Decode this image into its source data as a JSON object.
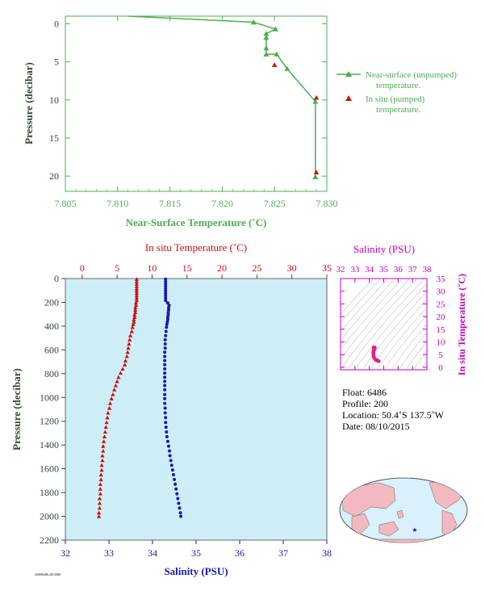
{
  "colors": {
    "green": "#4caf50",
    "red": "#cc1010",
    "blue": "#1a1aa8",
    "magenta": "#c000c0",
    "axis_text": "#2e4a2e",
    "profile_bg": "#cdeef7",
    "map_ocean": "#d8f1fb",
    "map_land": "#f2b9c0"
  },
  "chart_data": [
    {
      "type": "line",
      "xlabel": "Near-Surface Temperature (˚C)",
      "ylabel": "Pressure (decibar)",
      "xlim": [
        7.805,
        7.83
      ],
      "ylim": [
        22,
        -1
      ],
      "x_ticks": [
        "7.805",
        "7.810",
        "7.815",
        "7.820",
        "7.825",
        "7.830"
      ],
      "y_ticks": [
        "0",
        "5",
        "10",
        "15",
        "20"
      ],
      "series": [
        {
          "name": "Near-surface (unpumped) temperature.",
          "marker": "triangle",
          "points": [
            [
              7.811,
              -1
            ],
            [
              7.823,
              -0.2
            ],
            [
              7.8251,
              0.7
            ],
            [
              7.8242,
              1.3
            ],
            [
              7.8242,
              1.8
            ],
            [
              7.8242,
              3.2
            ],
            [
              7.8242,
              4.0
            ],
            [
              7.8252,
              4.0
            ],
            [
              7.8262,
              5.9
            ],
            [
              7.8289,
              10.2
            ],
            [
              7.8289,
              20.1
            ]
          ]
        },
        {
          "name": "In situ (pumped) temperature.",
          "marker": "triangle",
          "points": [
            [
              7.825,
              5.4
            ],
            [
              7.829,
              9.7
            ],
            [
              7.829,
              19.5
            ]
          ]
        }
      ],
      "legend_position": "right"
    },
    {
      "type": "scatter",
      "top_xlabel": "In situ Temperature (˚C)",
      "bottom_xlabel": "Salinity (PSU)",
      "ylabel": "Pressure (decibar)",
      "temp_ticks": [
        "0",
        "5",
        "10",
        "15",
        "20",
        "25",
        "30",
        "35"
      ],
      "temp_lim": [
        -2.4,
        35
      ],
      "sal_ticks": [
        "32",
        "33",
        "34",
        "35",
        "36",
        "37",
        "38"
      ],
      "sal_lim": [
        32,
        38
      ],
      "pressure_ticks": [
        "0",
        "200",
        "400",
        "600",
        "800",
        "1000",
        "1200",
        "1400",
        "1600",
        "1800",
        "2000",
        "2200"
      ],
      "pressure_lim": [
        0,
        2200
      ],
      "temperature_profile": [
        [
          7.8,
          5
        ],
        [
          7.8,
          25
        ],
        [
          7.8,
          45
        ],
        [
          7.8,
          65
        ],
        [
          7.8,
          85
        ],
        [
          7.8,
          105
        ],
        [
          7.8,
          125
        ],
        [
          7.8,
          145
        ],
        [
          7.8,
          165
        ],
        [
          7.8,
          185
        ],
        [
          7.7,
          205
        ],
        [
          7.7,
          225
        ],
        [
          7.6,
          245
        ],
        [
          7.6,
          265
        ],
        [
          7.6,
          285
        ],
        [
          7.5,
          305
        ],
        [
          7.5,
          325
        ],
        [
          7.4,
          345
        ],
        [
          7.4,
          365
        ],
        [
          7.3,
          385
        ],
        [
          7.2,
          410
        ],
        [
          7.1,
          445
        ],
        [
          6.9,
          480
        ],
        [
          6.8,
          515
        ],
        [
          6.7,
          550
        ],
        [
          6.6,
          585
        ],
        [
          6.5,
          620
        ],
        [
          6.4,
          655
        ],
        [
          6.2,
          690
        ],
        [
          6.1,
          725
        ],
        [
          5.8,
          760
        ],
        [
          5.5,
          795
        ],
        [
          5.2,
          830
        ],
        [
          5.0,
          865
        ],
        [
          4.8,
          900
        ],
        [
          4.6,
          935
        ],
        [
          4.4,
          975
        ],
        [
          4.2,
          1010
        ],
        [
          4.0,
          1050
        ],
        [
          3.9,
          1090
        ],
        [
          3.7,
          1130
        ],
        [
          3.6,
          1170
        ],
        [
          3.5,
          1210
        ],
        [
          3.4,
          1250
        ],
        [
          3.3,
          1290
        ],
        [
          3.2,
          1330
        ],
        [
          3.1,
          1370
        ],
        [
          3.0,
          1410
        ],
        [
          3.0,
          1450
        ],
        [
          2.9,
          1490
        ],
        [
          2.9,
          1530
        ],
        [
          2.8,
          1570
        ],
        [
          2.8,
          1610
        ],
        [
          2.7,
          1650
        ],
        [
          2.7,
          1690
        ],
        [
          2.6,
          1730
        ],
        [
          2.6,
          1770
        ],
        [
          2.6,
          1810
        ],
        [
          2.5,
          1850
        ],
        [
          2.5,
          1890
        ],
        [
          2.5,
          1930
        ],
        [
          2.4,
          1970
        ],
        [
          2.4,
          2000
        ]
      ],
      "salinity_profile": [
        [
          34.3,
          5
        ],
        [
          34.3,
          25
        ],
        [
          34.3,
          45
        ],
        [
          34.3,
          65
        ],
        [
          34.3,
          85
        ],
        [
          34.3,
          105
        ],
        [
          34.3,
          125
        ],
        [
          34.3,
          145
        ],
        [
          34.3,
          165
        ],
        [
          34.3,
          185
        ],
        [
          34.35,
          205
        ],
        [
          34.38,
          225
        ],
        [
          34.37,
          245
        ],
        [
          34.37,
          265
        ],
        [
          34.36,
          285
        ],
        [
          34.36,
          305
        ],
        [
          34.35,
          325
        ],
        [
          34.35,
          345
        ],
        [
          34.34,
          365
        ],
        [
          34.33,
          385
        ],
        [
          34.32,
          410
        ],
        [
          34.31,
          445
        ],
        [
          34.3,
          480
        ],
        [
          34.29,
          515
        ],
        [
          34.29,
          550
        ],
        [
          34.29,
          585
        ],
        [
          34.28,
          620
        ],
        [
          34.28,
          655
        ],
        [
          34.28,
          690
        ],
        [
          34.28,
          725
        ],
        [
          34.28,
          760
        ],
        [
          34.28,
          795
        ],
        [
          34.28,
          830
        ],
        [
          34.28,
          865
        ],
        [
          34.28,
          900
        ],
        [
          34.28,
          935
        ],
        [
          34.28,
          975
        ],
        [
          34.28,
          1010
        ],
        [
          34.28,
          1050
        ],
        [
          34.29,
          1090
        ],
        [
          34.29,
          1130
        ],
        [
          34.3,
          1170
        ],
        [
          34.3,
          1210
        ],
        [
          34.31,
          1250
        ],
        [
          34.32,
          1290
        ],
        [
          34.33,
          1330
        ],
        [
          34.35,
          1370
        ],
        [
          34.37,
          1410
        ],
        [
          34.39,
          1450
        ],
        [
          34.4,
          1490
        ],
        [
          34.42,
          1530
        ],
        [
          34.44,
          1570
        ],
        [
          34.46,
          1610
        ],
        [
          34.48,
          1650
        ],
        [
          34.5,
          1690
        ],
        [
          34.52,
          1730
        ],
        [
          34.54,
          1770
        ],
        [
          34.56,
          1810
        ],
        [
          34.58,
          1850
        ],
        [
          34.6,
          1890
        ],
        [
          34.62,
          1930
        ],
        [
          34.64,
          1970
        ],
        [
          34.65,
          2000
        ]
      ]
    },
    {
      "type": "scatter",
      "title": "Salinity (PSU)",
      "xlabel": "Salinity (PSU)",
      "ylabel": "In situ Temperature (˚C)",
      "x_ticks": [
        "32",
        "33",
        "34",
        "35",
        "36",
        "37",
        "38"
      ],
      "y_ticks": [
        "0",
        "5",
        "10",
        "15",
        "20",
        "25",
        "30",
        "35"
      ],
      "xlim": [
        32,
        38
      ],
      "ylim": [
        -1,
        35
      ],
      "points": [
        [
          34.3,
          7.8
        ],
        [
          34.32,
          7.5
        ],
        [
          34.35,
          7.2
        ],
        [
          34.38,
          7.8
        ],
        [
          34.36,
          7.3
        ],
        [
          34.33,
          6.9
        ],
        [
          34.3,
          6.6
        ],
        [
          34.28,
          6.2
        ],
        [
          34.28,
          5.8
        ],
        [
          34.28,
          5.4
        ],
        [
          34.28,
          5.0
        ],
        [
          34.29,
          4.6
        ],
        [
          34.3,
          4.2
        ],
        [
          34.32,
          3.9
        ],
        [
          34.35,
          3.6
        ],
        [
          34.39,
          3.3
        ],
        [
          34.44,
          3.0
        ],
        [
          34.5,
          2.8
        ],
        [
          34.56,
          2.6
        ],
        [
          34.62,
          2.5
        ],
        [
          34.65,
          2.4
        ]
      ]
    }
  ],
  "info": {
    "float": "Float:  6486",
    "profile": "Profile:  200",
    "location": "Location:  50.4˚S  137.5˚W",
    "date": "Date:  08/10/2015"
  },
  "footer_code": "A0006486.2015088"
}
